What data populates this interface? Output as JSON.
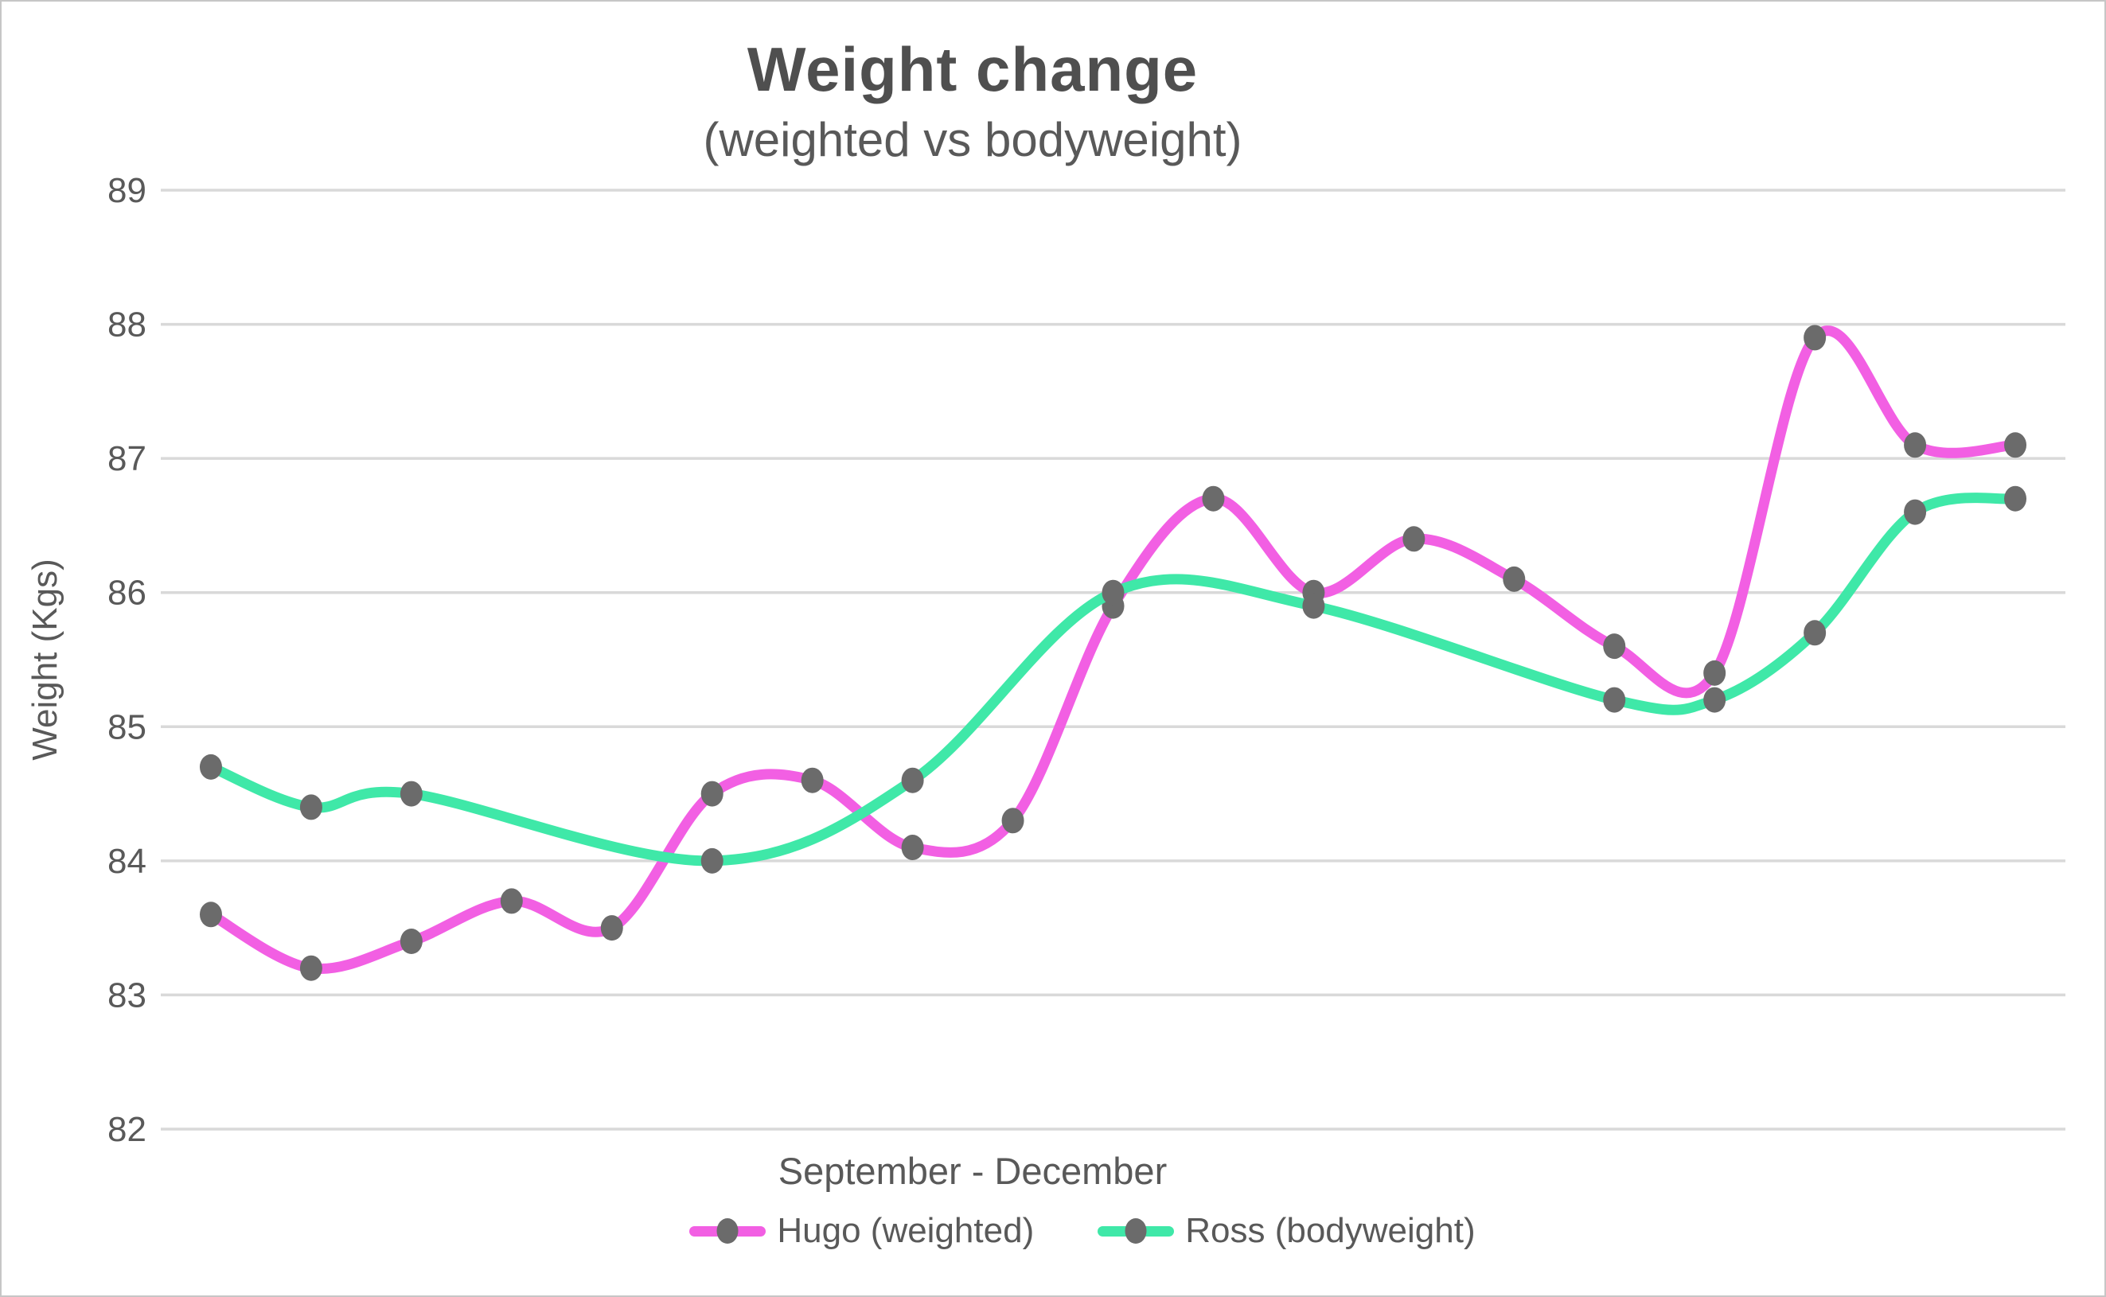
{
  "chart_data": {
    "type": "line",
    "title": "Weight change",
    "subtitle": "(weighted vs bodyweight)",
    "xlabel": "September - December",
    "ylabel": "Weight (Kgs)",
    "ylim": [
      82,
      89
    ],
    "yticks": [
      89,
      88,
      87,
      86,
      85,
      84,
      83,
      82
    ],
    "x_point_count": 19,
    "x_tick_labels_visible": false,
    "grid": "horizontal",
    "legend_position": "bottom-center",
    "line_style": "smooth",
    "series": [
      {
        "name": "Hugo (weighted)",
        "color": "#f25fe3",
        "marker": "circle",
        "marker_color": "#6b6b6b",
        "values": [
          83.6,
          83.2,
          83.4,
          83.7,
          83.5,
          84.5,
          84.6,
          84.1,
          84.3,
          85.9,
          86.7,
          86.0,
          86.4,
          86.1,
          85.6,
          85.4,
          87.9,
          87.1,
          87.1
        ]
      },
      {
        "name": "Ross (bodyweight)",
        "color": "#3fe8a8",
        "marker": "circle",
        "marker_color": "#6b6b6b",
        "values": [
          84.7,
          84.4,
          84.5,
          null,
          null,
          84.0,
          null,
          84.6,
          null,
          86.0,
          null,
          85.9,
          null,
          null,
          85.2,
          85.2,
          85.7,
          86.6,
          86.7
        ]
      }
    ],
    "styles": {
      "gridline_color": "#d9d9d9",
      "tick_text_color": "#595959",
      "title_color": "#4f4f4f",
      "line_width": 13,
      "marker_rx": 14,
      "marker_ry": 16
    }
  }
}
